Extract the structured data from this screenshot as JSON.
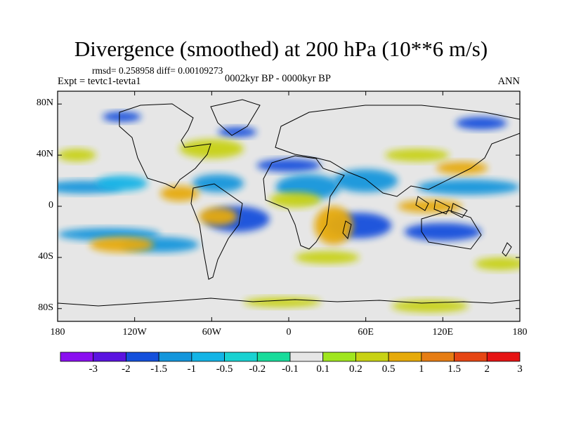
{
  "header": {
    "title": "Divergence (smoothed) at 200 hPa (10**6 m/s)",
    "stats": "rmsd= 0.258958 diff= 0.00109273",
    "experiment": "Expt = tevtc1-tevta1",
    "period": "0002kyr BP - 0000kyr BP",
    "season": "ANN"
  },
  "chart_data": {
    "type": "heatmap",
    "title": "Divergence (smoothed) at 200 hPa (10**6 m/s)",
    "x_ticks": [
      "180",
      "120W",
      "60W",
      "0",
      "60E",
      "120E",
      "180"
    ],
    "x_tick_values": [
      -180,
      -120,
      -60,
      0,
      60,
      120,
      180
    ],
    "y_ticks": [
      "80N",
      "40N",
      "0",
      "40S",
      "80S"
    ],
    "y_tick_values": [
      80,
      40,
      0,
      -40,
      -80
    ],
    "xlim": [
      -180,
      180
    ],
    "ylim": [
      -90,
      90
    ],
    "colorbar": {
      "labels": [
        "-3",
        "-2",
        "-1.5",
        "-1",
        "-0.5",
        "-0.2",
        "-0.1",
        "0.1",
        "0.2",
        "0.5",
        "1",
        "1.5",
        "2",
        "3"
      ],
      "colors": [
        "#8a0ff0",
        "#5a14e0",
        "#1450dc",
        "#1496dc",
        "#14b4e6",
        "#19d2d2",
        "#19dc9b",
        "#e6e6e6",
        "#a0e61e",
        "#c8d214",
        "#e6aa0a",
        "#e67d14",
        "#e64614",
        "#e61414"
      ]
    },
    "regions": [
      {
        "type": "neg",
        "lon": -160,
        "lat": 15,
        "w": 60,
        "h": 10,
        "level": 4
      },
      {
        "type": "neg",
        "lon": -130,
        "lat": 18,
        "w": 40,
        "h": 12,
        "level": 3
      },
      {
        "type": "neg",
        "lon": -140,
        "lat": -22,
        "w": 80,
        "h": 10,
        "level": 4
      },
      {
        "type": "neg",
        "lon": -100,
        "lat": -30,
        "w": 60,
        "h": 12,
        "level": 4
      },
      {
        "type": "neg",
        "lon": -55,
        "lat": 18,
        "w": 40,
        "h": 14,
        "level": 4
      },
      {
        "type": "neg",
        "lon": -40,
        "lat": -10,
        "w": 50,
        "h": 20,
        "level": 5
      },
      {
        "type": "neg",
        "lon": 0,
        "lat": 32,
        "w": 50,
        "h": 10,
        "level": 5
      },
      {
        "type": "neg",
        "lon": 15,
        "lat": 15,
        "w": 50,
        "h": 20,
        "level": 4
      },
      {
        "type": "neg",
        "lon": 60,
        "lat": 20,
        "w": 50,
        "h": 18,
        "level": 4
      },
      {
        "type": "neg",
        "lon": 55,
        "lat": -15,
        "w": 50,
        "h": 20,
        "level": 5
      },
      {
        "type": "neg",
        "lon": 140,
        "lat": 15,
        "w": 80,
        "h": 12,
        "level": 4
      },
      {
        "type": "neg",
        "lon": 120,
        "lat": -20,
        "w": 60,
        "h": 14,
        "level": 5
      },
      {
        "type": "neg",
        "lon": 150,
        "lat": 65,
        "w": 40,
        "h": 10,
        "level": 5
      },
      {
        "type": "neg",
        "lon": -40,
        "lat": 58,
        "w": 30,
        "h": 8,
        "level": 5
      },
      {
        "type": "neg",
        "lon": -130,
        "lat": 70,
        "w": 30,
        "h": 8,
        "level": 5
      },
      {
        "type": "pos",
        "lon": -165,
        "lat": 40,
        "w": 30,
        "h": 10,
        "level": 2
      },
      {
        "type": "pos",
        "lon": -130,
        "lat": -30,
        "w": 50,
        "h": 12,
        "level": 3
      },
      {
        "type": "pos",
        "lon": -85,
        "lat": 10,
        "w": 30,
        "h": 12,
        "level": 3
      },
      {
        "type": "pos",
        "lon": -60,
        "lat": 45,
        "w": 50,
        "h": 15,
        "level": 2
      },
      {
        "type": "pos",
        "lon": -55,
        "lat": -8,
        "w": 30,
        "h": 14,
        "level": 3
      },
      {
        "type": "pos",
        "lon": 5,
        "lat": 5,
        "w": 40,
        "h": 12,
        "level": 2
      },
      {
        "type": "pos",
        "lon": 35,
        "lat": -15,
        "w": 30,
        "h": 30,
        "level": 3
      },
      {
        "type": "pos",
        "lon": 30,
        "lat": -40,
        "w": 50,
        "h": 10,
        "level": 2
      },
      {
        "type": "pos",
        "lon": 100,
        "lat": 40,
        "w": 50,
        "h": 10,
        "level": 2
      },
      {
        "type": "pos",
        "lon": 110,
        "lat": 0,
        "w": 50,
        "h": 10,
        "level": 3
      },
      {
        "type": "pos",
        "lon": 135,
        "lat": 30,
        "w": 40,
        "h": 10,
        "level": 3
      },
      {
        "type": "pos",
        "lon": -5,
        "lat": -75,
        "w": 60,
        "h": 8,
        "level": 2
      },
      {
        "type": "pos",
        "lon": 110,
        "lat": -78,
        "w": 60,
        "h": 10,
        "level": 2
      },
      {
        "type": "pos",
        "lon": 165,
        "lat": -45,
        "w": 40,
        "h": 10,
        "level": 2
      }
    ]
  }
}
